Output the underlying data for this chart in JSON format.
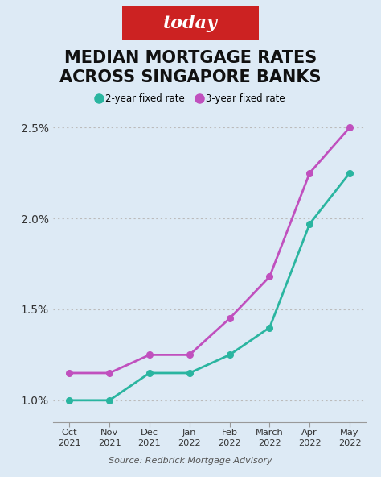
{
  "title_line1": "MEDIAN MORTGAGE RATES",
  "title_line2": "ACROSS SINGAPORE BANKS",
  "source": "Source: Redbrick Mortgage Advisory",
  "logo_text": "today",
  "logo_bg": "#cc2222",
  "logo_text_color": "#ffffff",
  "background_color": "#ddeaf5",
  "plot_bg": "#ddeaf5",
  "x_labels": [
    "Oct\n2021",
    "Nov\n2021",
    "Dec\n2021",
    "Jan\n2022",
    "Feb\n2022",
    "March\n2022",
    "Apr\n2022",
    "May\n2022"
  ],
  "two_year": [
    1.0,
    1.0,
    1.15,
    1.15,
    1.25,
    1.4,
    1.97,
    2.25
  ],
  "three_year": [
    1.15,
    1.15,
    1.25,
    1.25,
    1.45,
    1.68,
    2.25,
    2.5
  ],
  "line_color_2yr": "#2ab5a0",
  "line_color_3yr": "#c050be",
  "ylim_min": 0.88,
  "ylim_max": 2.65,
  "yticks": [
    1.0,
    1.5,
    2.0,
    2.5
  ],
  "ytick_labels": [
    "1.0%",
    "1.5%",
    "2.0%",
    "2.5%"
  ],
  "title_fontsize": 15,
  "legend_2yr": "2-year fixed rate",
  "legend_3yr": "3-year fixed rate",
  "grid_color": "#bbbbbb",
  "title_color": "#111111"
}
